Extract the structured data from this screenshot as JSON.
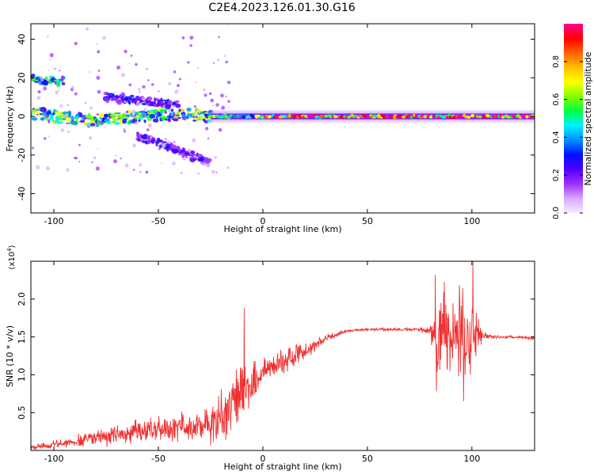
{
  "title": "C2E4.2023.126.01.30.G16",
  "colors": {
    "snr_line": "#f03030",
    "colormap": [
      "#f7ecff",
      "#d8a8ff",
      "#9a30ff",
      "#5000ff",
      "#0010ff",
      "#0090ff",
      "#00f0ff",
      "#00ff40",
      "#80ff00",
      "#ffff00",
      "#ffc000",
      "#ff6000",
      "#ff0000",
      "#ff0090"
    ]
  },
  "chart_data": [
    {
      "type": "heatmap",
      "name": "spectrogram",
      "xlabel": "Height of straight line (km)",
      "ylabel": "Frequency (Hz)",
      "xlim": [
        -111,
        130
      ],
      "ylim": [
        -50,
        48
      ],
      "xticks": [
        -100,
        -50,
        0,
        50,
        100
      ],
      "yticks": [
        -40,
        -20,
        0,
        20,
        40
      ],
      "grid": false,
      "colorbar": {
        "label": "Normalized spectral amplitude",
        "range": [
          0,
          1
        ],
        "ticks": [
          "0.0",
          "0.2",
          "0.4",
          "0.6",
          "0.8"
        ]
      },
      "ridges": [
        {
          "x": [
            -111,
            -100,
            -80,
            -60,
            -40,
            -25
          ],
          "y": [
            2,
            0,
            -2,
            0,
            1,
            0
          ],
          "amplitude": 0.35
        },
        {
          "x": [
            -25,
            -10,
            0
          ],
          "y": [
            0,
            0,
            0
          ],
          "amplitude": 0.6
        },
        {
          "x": [
            0,
            40,
            80,
            100,
            130
          ],
          "y": [
            0,
            0,
            0,
            0,
            0
          ],
          "amplitude": 0.95
        },
        {
          "x": [
            -111,
            -95
          ],
          "y": [
            19,
            18
          ],
          "amplitude": 0.3
        },
        {
          "x": [
            -75,
            -40
          ],
          "y": [
            10,
            6
          ],
          "amplitude": 0.15
        },
        {
          "x": [
            -60,
            -25
          ],
          "y": [
            -10,
            -24
          ],
          "amplitude": 0.15
        }
      ]
    },
    {
      "type": "line",
      "name": "snr",
      "xlabel": "Height of straight line (km)",
      "ylabel": "SNR (10 * v/v)",
      "y_scale_label": "(x10",
      "y_scale_exp": "4",
      "y_scale_close": ")",
      "xlim": [
        -111,
        130
      ],
      "ylim": [
        0,
        2.5
      ],
      "xticks": [
        -100,
        -50,
        0,
        50,
        100
      ],
      "yticks": [
        0.5,
        1.0,
        1.5,
        2.0
      ],
      "grid": false,
      "x": [
        -111,
        -100,
        -90,
        -80,
        -70,
        -60,
        -50,
        -40,
        -30,
        -25,
        -20,
        -15,
        -10,
        -5,
        0,
        5,
        10,
        15,
        20,
        25,
        30,
        40,
        50,
        60,
        70,
        80,
        82,
        85,
        90,
        95,
        100,
        103,
        105,
        110,
        120,
        130
      ],
      "y": [
        0.03,
        0.08,
        0.12,
        0.17,
        0.2,
        0.25,
        0.28,
        0.3,
        0.32,
        0.33,
        0.45,
        0.65,
        0.75,
        0.9,
        1.05,
        1.1,
        1.18,
        1.25,
        1.3,
        1.4,
        1.48,
        1.58,
        1.6,
        1.6,
        1.6,
        1.58,
        1.55,
        1.5,
        1.55,
        1.5,
        1.45,
        1.55,
        1.52,
        1.5,
        1.5,
        1.48
      ],
      "noise": [
        0.03,
        0.05,
        0.08,
        0.1,
        0.12,
        0.14,
        0.15,
        0.18,
        0.22,
        0.25,
        0.3,
        0.38,
        0.4,
        0.3,
        0.15,
        0.15,
        0.18,
        0.15,
        0.1,
        0.08,
        0.05,
        0.02,
        0.02,
        0.02,
        0.02,
        0.05,
        0.55,
        0.65,
        0.55,
        0.6,
        0.45,
        0.3,
        0.05,
        0.02,
        0.02,
        0.02
      ],
      "spikes": [
        {
          "x": -9,
          "y": 1.88
        },
        {
          "x": 82.5,
          "y": 2.32
        },
        {
          "x": 100.5,
          "y": 2.5
        },
        {
          "x": 96,
          "y": 0.65
        },
        {
          "x": 83,
          "y": 0.78
        }
      ]
    }
  ]
}
